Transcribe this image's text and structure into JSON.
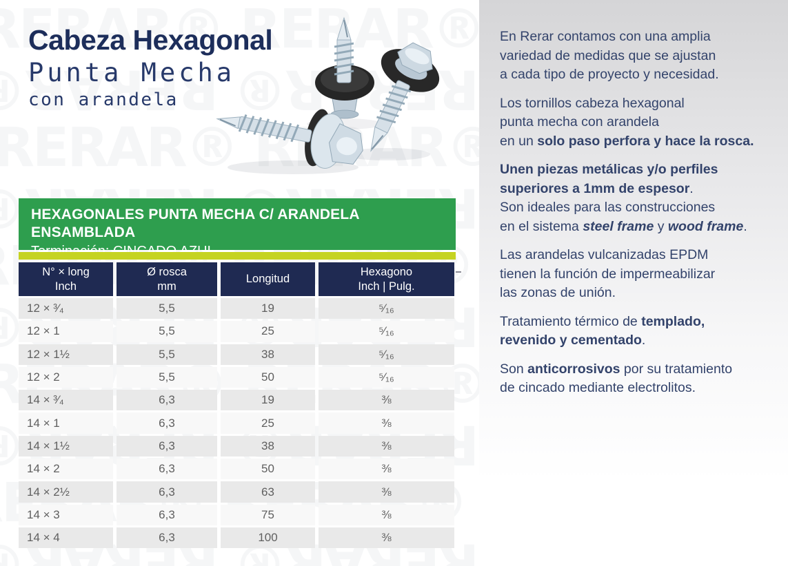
{
  "brand_watermark": "RERAR®",
  "title": {
    "line1": "Cabeza Hexagonal",
    "line2": "Punta Mecha",
    "line3": "con arandela"
  },
  "photo": {
    "description": "Tres tornillos autoperforantes cabeza hexagonal con arandela vulcanizada"
  },
  "banner": {
    "line1": "HEXAGONALES PUNTA MECHA C/ ARANDELA ENSAMBLADA",
    "line2": "Terminación: CINCADO AZUL"
  },
  "colors": {
    "navy": "#1f2a52",
    "green": "#2e9e4e",
    "lime": "#c5d322",
    "text_navy": "#33436b",
    "row_gray": "#e9e9e9",
    "row_light": "#f8f8f8"
  },
  "table": {
    "headers": [
      {
        "line1": "N° × long",
        "line2": "Inch"
      },
      {
        "line1": "Ø rosca",
        "line2": "mm"
      },
      {
        "line1": "Longitud",
        "line2": ""
      },
      {
        "line1": "Hexagono",
        "line2": "Inch | Pulg."
      }
    ],
    "rows": [
      {
        "size": "12 × ³⁄₄",
        "rosca": "5,5",
        "longitud": "19",
        "hex": "⁵⁄₁₆"
      },
      {
        "size": "12 × 1",
        "rosca": "5,5",
        "longitud": "25",
        "hex": "⁵⁄₁₆"
      },
      {
        "size": "12 × 1½",
        "rosca": "5,5",
        "longitud": "38",
        "hex": "⁵⁄₁₆"
      },
      {
        "size": "12 × 2",
        "rosca": "5,5",
        "longitud": "50",
        "hex": "⁵⁄₁₆"
      },
      {
        "size": "14 × ³⁄₄",
        "rosca": "6,3",
        "longitud": "19",
        "hex": "⅜"
      },
      {
        "size": "14 × 1",
        "rosca": "6,3",
        "longitud": "25",
        "hex": "⅜"
      },
      {
        "size": "14 × 1½",
        "rosca": "6,3",
        "longitud": "38",
        "hex": "⅜"
      },
      {
        "size": "14 × 2",
        "rosca": "6,3",
        "longitud": "50",
        "hex": "⅜"
      },
      {
        "size": "14 × 2½",
        "rosca": "6,3",
        "longitud": "63",
        "hex": "⅜"
      },
      {
        "size": "14 × 3",
        "rosca": "6,3",
        "longitud": "75",
        "hex": "⅜"
      },
      {
        "size": "14 × 4",
        "rosca": "6,3",
        "longitud": "100",
        "hex": "⅜"
      }
    ]
  },
  "sidebar": {
    "paragraphs": [
      {
        "segments": [
          {
            "t": "En Rerar contamos con una amplia\nvariedad de medidas que se ajustan\na cada tipo de proyecto y necesidad."
          }
        ]
      },
      {
        "segments": [
          {
            "t": "Los tornillos cabeza hexagonal\npunta mecha con arandela\nen un "
          },
          {
            "t": "solo paso perfora y hace la rosca.",
            "b": true
          }
        ]
      },
      {
        "segments": [
          {
            "t": "Unen piezas metálicas y/o perfiles\nsuperiores a 1mm de espesor",
            "b": true
          },
          {
            "t": ".\nSon ideales para las construcciones\nen el sistema "
          },
          {
            "t": "steel frame",
            "b": true,
            "i": true
          },
          {
            "t": " y "
          },
          {
            "t": "wood frame",
            "b": true,
            "i": true
          },
          {
            "t": "."
          }
        ]
      },
      {
        "segments": [
          {
            "t": "Las arandelas vulcanizadas EPDM\ntienen la función de impermeabilizar\nlas zonas de unión."
          }
        ]
      },
      {
        "segments": [
          {
            "t": "Tratamiento térmico de "
          },
          {
            "t": "templado,\nrevenido y cementado",
            "b": true
          },
          {
            "t": "."
          }
        ]
      },
      {
        "segments": [
          {
            "t": "Son "
          },
          {
            "t": "anticorrosivos",
            "b": true
          },
          {
            "t": " por su tratamiento\nde cincado mediante electrolitos."
          }
        ]
      }
    ]
  }
}
